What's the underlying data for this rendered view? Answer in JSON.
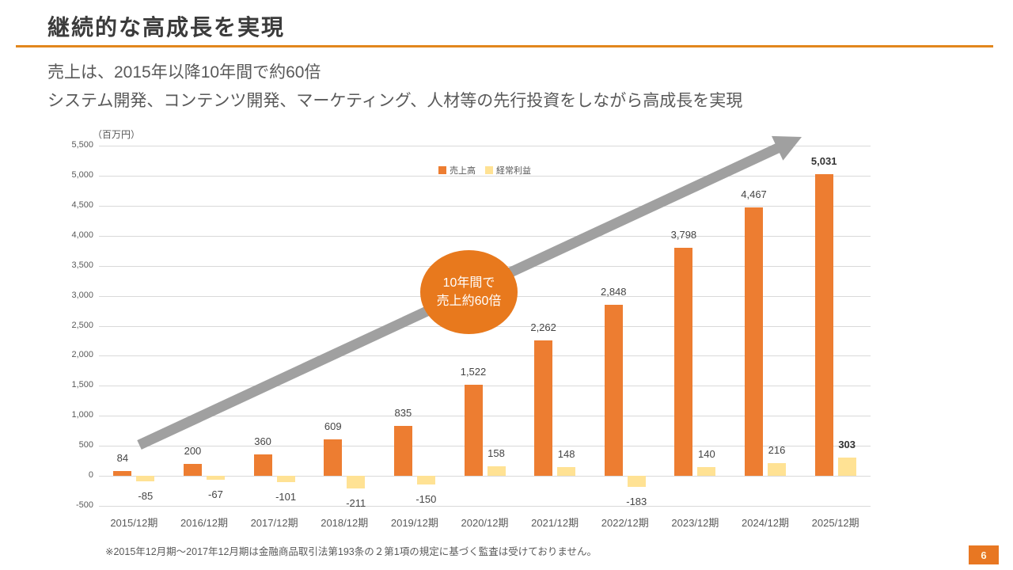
{
  "header": {
    "title": "継続的な高成長を実現"
  },
  "subtitle": {
    "line1": "売上は、2015年以降10年間で約60倍",
    "line2": "システム開発、コンテンツ開発、マーケティング、人材等の先行投資をしながら高成長を実現"
  },
  "chart_data": {
    "type": "bar",
    "title": "",
    "unit_label": "（百万円）",
    "categories": [
      "2015/12期",
      "2016/12期",
      "2017/12期",
      "2018/12期",
      "2019/12期",
      "2020/12期",
      "2021/12期",
      "2022/12期",
      "2023/12期",
      "2024/12期",
      "2025/12期"
    ],
    "series": [
      {
        "name": "売上高",
        "color": "#ED7D31",
        "values": [
          84,
          200,
          360,
          609,
          835,
          1522,
          2262,
          2848,
          3798,
          4467,
          5031
        ]
      },
      {
        "name": "経常利益",
        "color": "#FFE294",
        "values": [
          -85,
          -67,
          -101,
          -211,
          -150,
          158,
          148,
          -183,
          140,
          216,
          303
        ]
      }
    ],
    "ylim": [
      -500,
      5500
    ],
    "ytick_step": 500,
    "grid": true,
    "legend_position": "top-center",
    "bold_last_value_label": true
  },
  "annotation": {
    "badge_line1": "10年間で",
    "badge_line2": "売上約60倍",
    "badge_color": "#E8791D",
    "arrow_color": "#A0A0A0"
  },
  "footnote": "※2015年12月期～2017年12月期は金融商品取引法第193条の２第1項の規定に基づく監査は受けておりません。",
  "page_number": "6",
  "colors": {
    "accent_rule": "#E2871D",
    "page_badge": "#E87722",
    "text_gray": "#595959",
    "gridline": "#D9D9D9"
  }
}
